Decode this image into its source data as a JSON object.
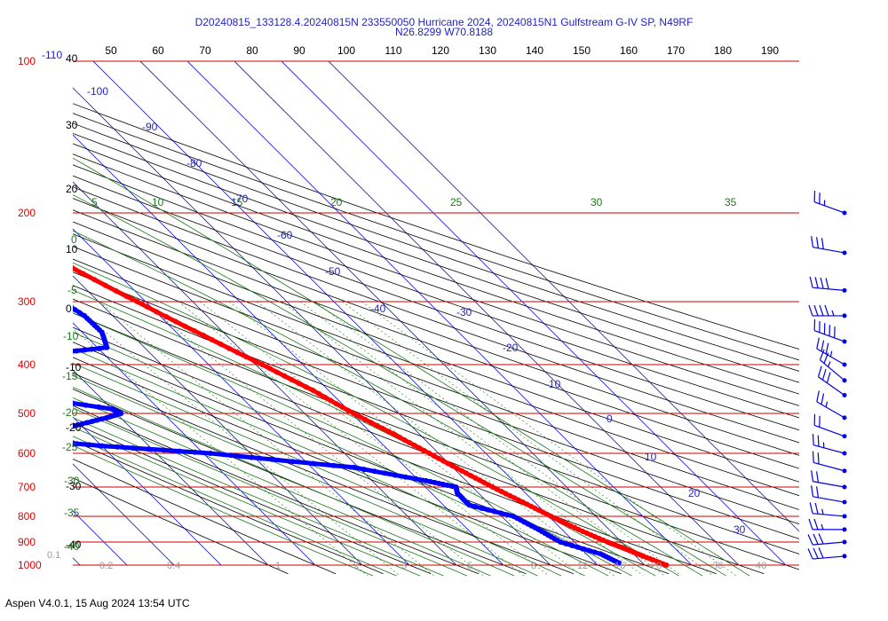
{
  "title": {
    "line1": "D20240815_133128.4.20240815N 233550050 Hurricane 2024, 20240815N1 Gulfstream G-IV SP, N49RF",
    "line2": "N26.8299 W70.8188"
  },
  "footer": "Aspen V4.0.1, 15 Aug 2024  13:54 UTC",
  "chart_data": {
    "type": "skew-t",
    "pressure_levels": [
      100,
      200,
      300,
      400,
      500,
      600,
      700,
      800,
      900,
      1000
    ],
    "pressure_range": [
      100,
      1000
    ],
    "temp_axis_top": [
      "50",
      "60",
      "70",
      "80",
      "90",
      "100",
      "110",
      "120",
      "130",
      "140",
      "150",
      "160",
      "170",
      "180",
      "190"
    ],
    "temp_axis_top_corner": "-110",
    "left_height_labels": [
      "40",
      "30",
      "20",
      "10",
      "0",
      "-10",
      "-20",
      "-30",
      "-40"
    ],
    "isotherm_labels": [
      "-100",
      "-90",
      "-80",
      "-70",
      "-60",
      "-50",
      "-40",
      "-30",
      "-20",
      "-10",
      "0",
      "10",
      "20",
      "30"
    ],
    "theta_e_labels": [
      "5",
      "10",
      "15",
      "20",
      "25",
      "30",
      "35"
    ],
    "dry_adiabat_labels": [
      "0",
      "-5",
      "-10",
      "-15",
      "-20",
      "-25",
      "-30",
      "-35",
      "-40"
    ],
    "mixing_ratio_labels": [
      "0.1",
      "0.2",
      "0.4",
      "1",
      "2",
      "3",
      "5",
      "8",
      "12",
      "16",
      "20",
      "30",
      "40"
    ],
    "series": [
      {
        "color": "#ff0000",
        "points": [
          [
            210,
            -46.5
          ],
          [
            250,
            -39.5
          ],
          [
            300,
            -31.8
          ],
          [
            350,
            -24.9
          ],
          [
            400,
            -18.6
          ],
          [
            450,
            -13.3
          ],
          [
            500,
            -9.6
          ],
          [
            550,
            -5.4
          ],
          [
            600,
            -2.0
          ],
          [
            650,
            1.2
          ],
          [
            700,
            4.3
          ],
          [
            750,
            7.5
          ],
          [
            800,
            10.5
          ],
          [
            850,
            13.5
          ],
          [
            900,
            17.0
          ],
          [
            930,
            19.5
          ],
          [
            960,
            21.6
          ],
          [
            1000,
            24.6
          ]
        ]
      },
      {
        "color": "#0000ff",
        "points": [
          [
            237,
            -54.0
          ],
          [
            260,
            -53.2
          ],
          [
            290,
            -48.5
          ],
          [
            320,
            -46.0
          ],
          [
            345,
            -45.8
          ],
          [
            370,
            -48.0
          ],
          [
            380,
            -60.5
          ],
          [
            400,
            -71.0
          ],
          [
            420,
            -79.5
          ],
          [
            440,
            -76.0
          ],
          [
            460,
            -76.5
          ],
          [
            490,
            -60.0
          ],
          [
            500,
            -59.0
          ],
          [
            510,
            -63.0
          ],
          [
            530,
            -72.0
          ],
          [
            560,
            -87.0
          ],
          [
            580,
            -70.0
          ],
          [
            600,
            -48.5
          ],
          [
            640,
            -21.0
          ],
          [
            680,
            -8.5
          ],
          [
            700,
            -3.5
          ],
          [
            720,
            -4.5
          ],
          [
            760,
            -4.5
          ],
          [
            800,
            2.5
          ],
          [
            850,
            5.0
          ],
          [
            900,
            7.0
          ],
          [
            950,
            13.0
          ],
          [
            990,
            15.0
          ]
        ]
      }
    ],
    "wind_barbs": [
      {
        "p": 200,
        "dir": 290,
        "kt": 25
      },
      {
        "p": 240,
        "dir": 280,
        "kt": 30
      },
      {
        "p": 285,
        "dir": 275,
        "kt": 40
      },
      {
        "p": 320,
        "dir": 270,
        "kt": 45
      },
      {
        "p": 360,
        "dir": 290,
        "kt": 50
      },
      {
        "p": 400,
        "dir": 300,
        "kt": 35
      },
      {
        "p": 430,
        "dir": 310,
        "kt": 25
      },
      {
        "p": 460,
        "dir": 305,
        "kt": 30
      },
      {
        "p": 510,
        "dir": 300,
        "kt": 25
      },
      {
        "p": 555,
        "dir": 290,
        "kt": 20
      },
      {
        "p": 600,
        "dir": 285,
        "kt": 25
      },
      {
        "p": 650,
        "dir": 285,
        "kt": 20
      },
      {
        "p": 700,
        "dir": 280,
        "kt": 20
      },
      {
        "p": 750,
        "dir": 280,
        "kt": 20
      },
      {
        "p": 800,
        "dir": 275,
        "kt": 25
      },
      {
        "p": 850,
        "dir": 270,
        "kt": 25
      },
      {
        "p": 900,
        "dir": 265,
        "kt": 30
      },
      {
        "p": 960,
        "dir": 265,
        "kt": 30
      }
    ]
  }
}
